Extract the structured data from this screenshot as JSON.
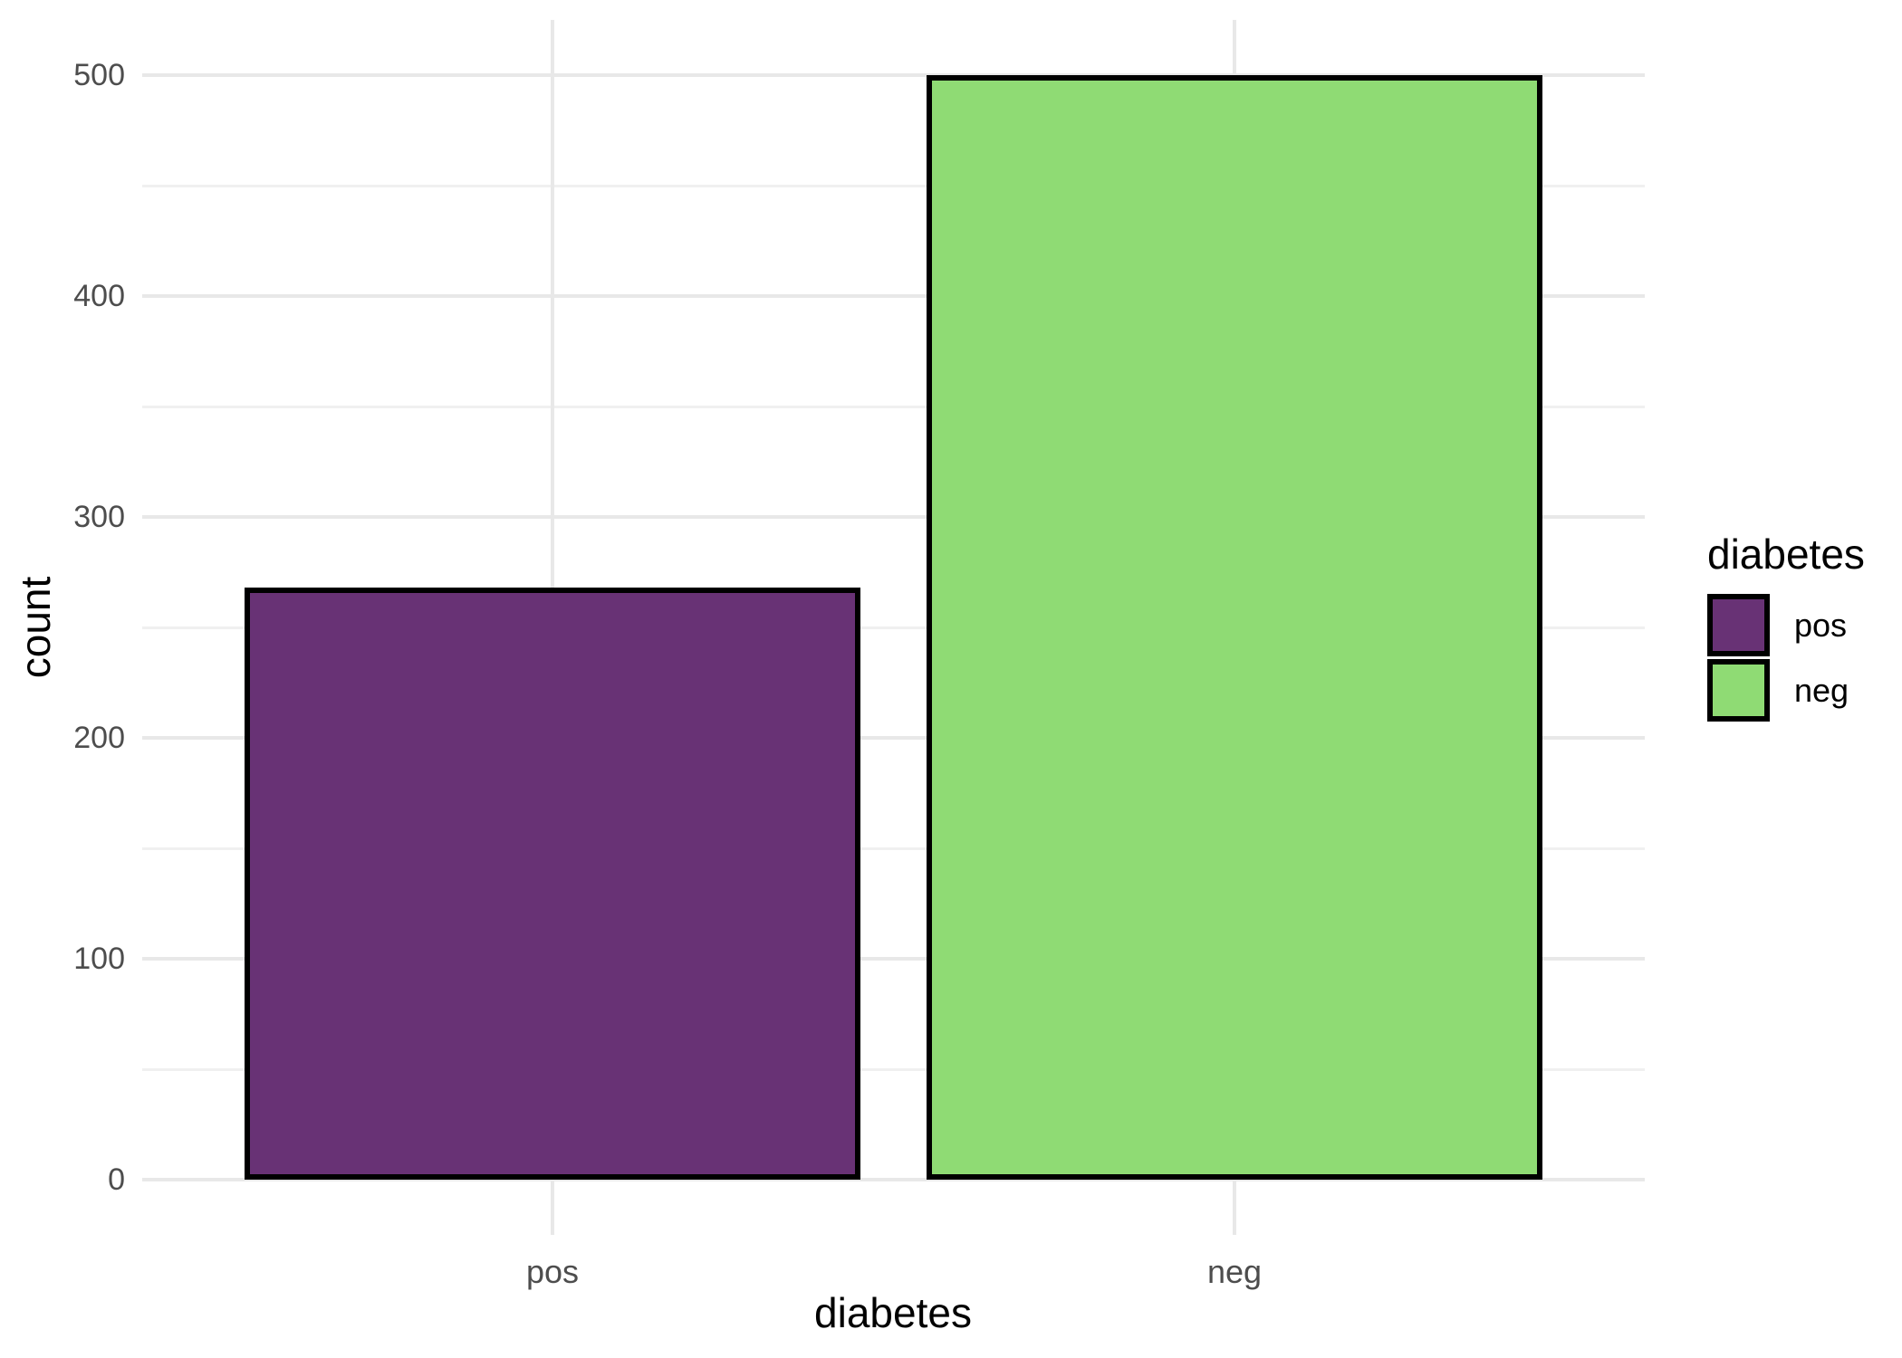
{
  "chart_data": {
    "type": "bar",
    "title": "",
    "xlabel": "diabetes",
    "ylabel": "count",
    "categories": [
      "pos",
      "neg"
    ],
    "values": [
      268,
      500
    ],
    "bar_fill_colors": [
      "#683275",
      "#8fdb74"
    ],
    "bar_border_color": "#000000",
    "ylim": [
      0,
      500
    ],
    "y_major_ticks": [
      0,
      100,
      200,
      300,
      400,
      500
    ],
    "y_minor_ticks": [
      50,
      150,
      250,
      350,
      450
    ],
    "grid": "horizontal major+minor gridlines, vertical major gridline at each category, no axis ticks, white background",
    "legend": {
      "title": "diabetes",
      "position": "right",
      "entries": [
        {
          "label": "pos",
          "color": "#683275"
        },
        {
          "label": "neg",
          "color": "#8fdb74"
        }
      ]
    }
  },
  "style_colors": {
    "grid_major": "#e8e8e8",
    "grid_minor": "#f0f0f0",
    "tick_label_text": "#4d4d4d",
    "title_text": "#000000",
    "background": "#ffffff"
  }
}
